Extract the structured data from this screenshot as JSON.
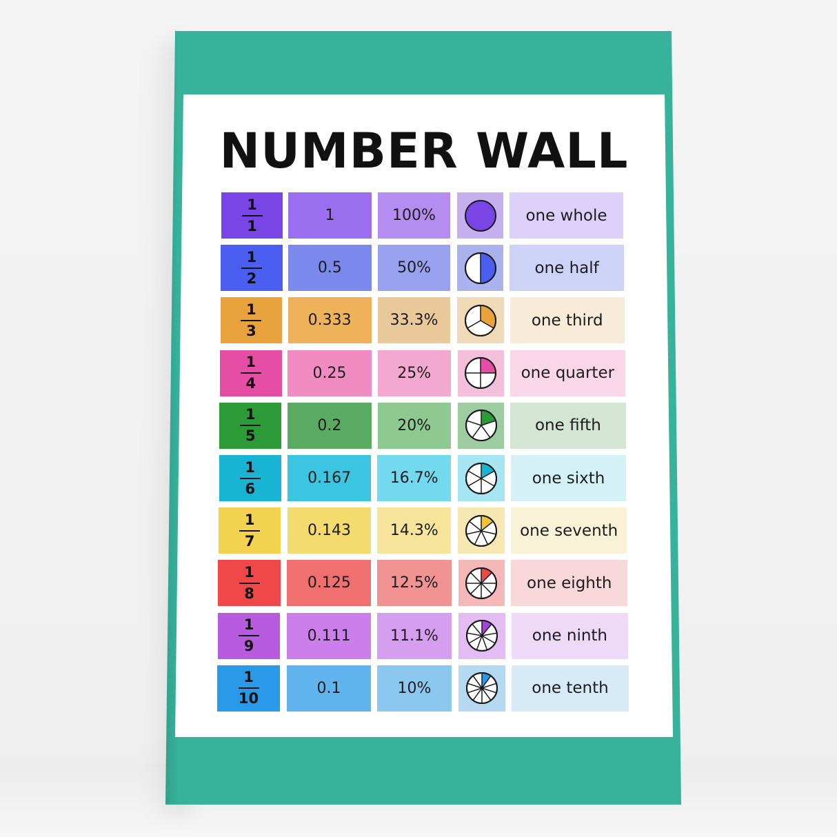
{
  "title": "NUMBER WALL",
  "rows": [
    {
      "numerator": "1",
      "denominator": "1",
      "decimal": "1",
      "percent": "100%",
      "words": "one whole",
      "parts": 1,
      "colors": {
        "fraction": "#7a45e6",
        "decimal": "#9b6ef0",
        "percent": "#b58df0",
        "pie_bg": "#c6b0f0",
        "pie": "#7a45e6",
        "words": "#ddd0fa"
      }
    },
    {
      "numerator": "1",
      "denominator": "2",
      "decimal": "0.5",
      "percent": "50%",
      "words": "one half",
      "parts": 2,
      "colors": {
        "fraction": "#4a5ff0",
        "decimal": "#7b88ec",
        "percent": "#98a2ee",
        "pie_bg": "#aab3ee",
        "pie": "#4a5ff0",
        "words": "#cdd2f7"
      }
    },
    {
      "numerator": "1",
      "denominator": "3",
      "decimal": "0.333",
      "percent": "33.3%",
      "words": "one third",
      "parts": 3,
      "colors": {
        "fraction": "#e8a23e",
        "decimal": "#eeb35a",
        "percent": "#e9c99a",
        "pie_bg": "#f0d9b6",
        "pie": "#e8a23e",
        "words": "#f8ecd8"
      }
    },
    {
      "numerator": "1",
      "denominator": "4",
      "decimal": "0.25",
      "percent": "25%",
      "words": "one quarter",
      "parts": 4,
      "colors": {
        "fraction": "#e64ea6",
        "decimal": "#f08cc2",
        "percent": "#f3a8cf",
        "pie_bg": "#f3bfdb",
        "pie": "#e64ea6",
        "words": "#f9d6e8"
      }
    },
    {
      "numerator": "1",
      "denominator": "5",
      "decimal": "0.2",
      "percent": "20%",
      "words": "one fifth",
      "parts": 5,
      "colors": {
        "fraction": "#2c9a36",
        "decimal": "#5aaa62",
        "percent": "#8ec991",
        "pie_bg": "#9dcca0",
        "pie": "#2c9a36",
        "words": "#d2e6d3"
      }
    },
    {
      "numerator": "1",
      "denominator": "6",
      "decimal": "0.167",
      "percent": "16.7%",
      "words": "one sixth",
      "parts": 6,
      "colors": {
        "fraction": "#19b4d4",
        "decimal": "#3cc5e0",
        "percent": "#72d9ee",
        "pie_bg": "#a6e6f3",
        "pie": "#19b4d4",
        "words": "#d3f1f7"
      }
    },
    {
      "numerator": "1",
      "denominator": "7",
      "decimal": "0.143",
      "percent": "14.3%",
      "words": "one seventh",
      "parts": 7,
      "colors": {
        "fraction": "#f2d24e",
        "decimal": "#f4db6e",
        "percent": "#f5e49a",
        "pie_bg": "#f6e8b0",
        "pie": "#f2c431",
        "words": "#faf2d6"
      }
    },
    {
      "numerator": "1",
      "denominator": "8",
      "decimal": "0.125",
      "percent": "12.5%",
      "words": "one eighth",
      "parts": 8,
      "colors": {
        "fraction": "#f04848",
        "decimal": "#f07070",
        "percent": "#f19393",
        "pie_bg": "#f4b8b8",
        "pie": "#f04848",
        "words": "#f8d8d8"
      }
    },
    {
      "numerator": "1",
      "denominator": "9",
      "decimal": "0.111",
      "percent": "11.1%",
      "words": "one ninth",
      "parts": 9,
      "colors": {
        "fraction": "#b85cde",
        "decimal": "#cc7eea",
        "percent": "#d69ef0",
        "pie_bg": "#e2bcf2",
        "pie": "#a244d8",
        "words": "#efd9f8"
      }
    },
    {
      "numerator": "1",
      "denominator": "10",
      "decimal": "0.1",
      "percent": "10%",
      "words": "one tenth",
      "parts": 10,
      "colors": {
        "fraction": "#2a9ae8",
        "decimal": "#62b4ee",
        "percent": "#8cc7f0",
        "pie_bg": "#b3d9f3",
        "pie": "#2a9ae8",
        "words": "#d6eaf7"
      }
    }
  ]
}
